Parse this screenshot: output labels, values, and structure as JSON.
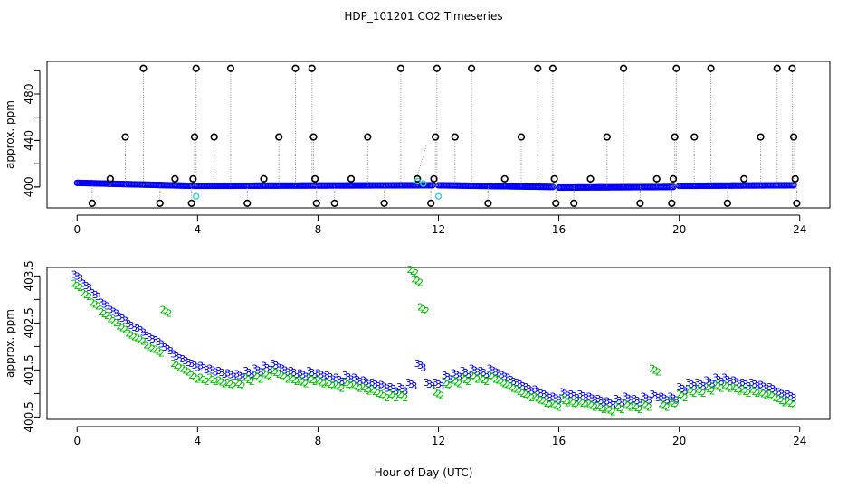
{
  "figure": {
    "title": "HDP_101201  CO2 Timeseries",
    "xlabel": "Hour of Day (UTC)"
  },
  "colors": {
    "black": "#000000",
    "blue": "#0000ff",
    "cyan": "#33cccc",
    "green": "#00bb00",
    "dotted_line": "#9a9a9a"
  },
  "chart_data": [
    {
      "type": "scatter",
      "panel": "top",
      "ylabel": "approx. ppm",
      "xlim": [
        -1,
        25
      ],
      "ylim": [
        382,
        508
      ],
      "xticks": [
        0,
        4,
        8,
        12,
        16,
        20,
        24
      ],
      "yticks": [
        400,
        440,
        480
      ],
      "grid": false,
      "baseline_segments": [
        {
          "x": [
            0.0,
            3.8
          ],
          "y": [
            403.5,
            401.0
          ]
        },
        {
          "x": [
            3.9,
            11.8
          ],
          "y": [
            401.0,
            401.5
          ]
        },
        {
          "x": [
            12.0,
            15.8
          ],
          "y": [
            401.5,
            400.0
          ]
        },
        {
          "x": [
            16.0,
            19.8
          ],
          "y": [
            399.5,
            400.0
          ]
        },
        {
          "x": [
            20.0,
            23.8
          ],
          "y": [
            401.0,
            401.5
          ]
        }
      ],
      "cyan_points": [
        {
          "x": 3.95,
          "y": 392
        },
        {
          "x": 12.0,
          "y": 392
        },
        {
          "x": 11.3,
          "y": 405
        },
        {
          "x": 11.5,
          "y": 403
        }
      ],
      "outlier_points": [
        {
          "x": 0.5,
          "y": 386
        },
        {
          "x": 1.1,
          "y": 407
        },
        {
          "x": 1.6,
          "y": 443
        },
        {
          "x": 2.2,
          "y": 502
        },
        {
          "x": 2.75,
          "y": 386
        },
        {
          "x": 3.25,
          "y": 407
        },
        {
          "x": 3.8,
          "y": 386
        },
        {
          "x": 3.85,
          "y": 407
        },
        {
          "x": 3.9,
          "y": 443
        },
        {
          "x": 3.95,
          "y": 502
        },
        {
          "x": 4.55,
          "y": 443
        },
        {
          "x": 5.1,
          "y": 502
        },
        {
          "x": 5.65,
          "y": 386
        },
        {
          "x": 6.2,
          "y": 407
        },
        {
          "x": 6.7,
          "y": 443
        },
        {
          "x": 7.25,
          "y": 502
        },
        {
          "x": 7.8,
          "y": 502
        },
        {
          "x": 7.85,
          "y": 443
        },
        {
          "x": 7.9,
          "y": 407
        },
        {
          "x": 7.95,
          "y": 386
        },
        {
          "x": 8.55,
          "y": 386
        },
        {
          "x": 9.1,
          "y": 407
        },
        {
          "x": 9.65,
          "y": 443
        },
        {
          "x": 10.2,
          "y": 386
        },
        {
          "x": 10.75,
          "y": 502
        },
        {
          "x": 11.3,
          "y": 407
        },
        {
          "x": 11.75,
          "y": 386
        },
        {
          "x": 11.85,
          "y": 407
        },
        {
          "x": 11.9,
          "y": 443
        },
        {
          "x": 11.95,
          "y": 502
        },
        {
          "x": 12.55,
          "y": 443
        },
        {
          "x": 13.1,
          "y": 502
        },
        {
          "x": 13.65,
          "y": 386
        },
        {
          "x": 14.2,
          "y": 407
        },
        {
          "x": 14.75,
          "y": 443
        },
        {
          "x": 15.3,
          "y": 502
        },
        {
          "x": 15.8,
          "y": 502
        },
        {
          "x": 15.85,
          "y": 407
        },
        {
          "x": 15.9,
          "y": 386
        },
        {
          "x": 16.5,
          "y": 386
        },
        {
          "x": 17.05,
          "y": 407
        },
        {
          "x": 17.6,
          "y": 443
        },
        {
          "x": 18.15,
          "y": 502
        },
        {
          "x": 18.7,
          "y": 386
        },
        {
          "x": 19.25,
          "y": 407
        },
        {
          "x": 19.75,
          "y": 386
        },
        {
          "x": 19.8,
          "y": 407
        },
        {
          "x": 19.85,
          "y": 443
        },
        {
          "x": 19.9,
          "y": 502
        },
        {
          "x": 20.5,
          "y": 443
        },
        {
          "x": 21.05,
          "y": 502
        },
        {
          "x": 21.6,
          "y": 386
        },
        {
          "x": 22.15,
          "y": 407
        },
        {
          "x": 22.7,
          "y": 443
        },
        {
          "x": 23.25,
          "y": 502
        },
        {
          "x": 23.75,
          "y": 502
        },
        {
          "x": 23.8,
          "y": 443
        },
        {
          "x": 23.85,
          "y": 407
        },
        {
          "x": 23.9,
          "y": 386
        }
      ],
      "gap_spike": {
        "x": [
          11.2,
          11.6
        ],
        "y": [
          401,
          436
        ]
      }
    },
    {
      "type": "scatter",
      "panel": "bottom",
      "ylabel": "approx. ppm",
      "xlim": [
        -1,
        25
      ],
      "ylim": [
        400.45,
        403.68
      ],
      "xticks": [
        0,
        4,
        8,
        12,
        16,
        20,
        24
      ],
      "yticks": [
        400.5,
        401.5,
        402.5,
        403.5
      ],
      "grid": false,
      "series": [
        {
          "marker": "3",
          "color": "blue",
          "x": [
            0.0,
            0.3,
            0.6,
            0.9,
            1.2,
            1.5,
            1.8,
            2.1,
            2.4,
            2.7,
            3.0,
            3.3,
            3.6,
            3.9,
            4.2,
            4.5,
            4.8,
            5.1,
            5.4,
            5.7,
            6.0,
            6.3,
            6.6,
            6.9,
            7.2,
            7.5,
            7.8,
            8.1,
            8.4,
            8.7,
            9.0,
            9.3,
            9.6,
            9.9,
            10.2,
            10.5,
            10.8,
            11.1,
            11.4,
            11.7,
            12.0,
            12.3,
            12.6,
            12.9,
            13.2,
            13.5,
            13.8,
            14.1,
            14.4,
            14.7,
            15.0,
            15.3,
            15.6,
            15.9,
            16.2,
            16.5,
            16.8,
            17.1,
            17.4,
            17.7,
            18.0,
            18.3,
            18.6,
            18.9,
            19.2,
            19.5,
            19.8,
            20.1,
            20.4,
            20.7,
            21.0,
            21.3,
            21.6,
            21.9,
            22.2,
            22.5,
            22.8,
            23.1,
            23.4,
            23.7
          ],
          "y": [
            403.5,
            403.3,
            403.1,
            402.9,
            402.75,
            402.6,
            402.45,
            402.35,
            402.2,
            402.1,
            401.95,
            401.8,
            401.7,
            401.6,
            401.55,
            401.5,
            401.45,
            401.4,
            401.38,
            401.45,
            401.5,
            401.55,
            401.6,
            401.5,
            401.45,
            401.4,
            401.45,
            401.4,
            401.35,
            401.3,
            401.35,
            401.3,
            401.25,
            401.2,
            401.15,
            401.1,
            401.1,
            401.2,
            401.6,
            401.2,
            401.2,
            401.35,
            401.4,
            401.45,
            401.5,
            401.45,
            401.5,
            401.4,
            401.3,
            401.2,
            401.1,
            401.05,
            400.95,
            400.9,
            401.0,
            400.95,
            400.95,
            400.9,
            400.85,
            400.8,
            400.85,
            400.9,
            400.85,
            400.9,
            400.95,
            400.9,
            400.9,
            401.1,
            401.2,
            401.2,
            401.25,
            401.3,
            401.3,
            401.25,
            401.2,
            401.2,
            401.15,
            401.1,
            401.0,
            400.95
          ]
        },
        {
          "marker": "2",
          "color": "green",
          "x": [
            0.0,
            0.3,
            0.6,
            0.9,
            1.2,
            1.5,
            1.8,
            2.1,
            2.4,
            2.7,
            2.95,
            3.3,
            3.6,
            3.9,
            4.2,
            4.5,
            4.8,
            5.1,
            5.4,
            5.7,
            6.0,
            6.3,
            6.6,
            6.9,
            7.2,
            7.5,
            7.8,
            8.1,
            8.4,
            8.7,
            9.0,
            9.3,
            9.6,
            9.9,
            10.2,
            10.5,
            10.8,
            11.15,
            11.3,
            11.5,
            12.0,
            12.3,
            12.6,
            12.9,
            13.2,
            13.5,
            13.8,
            14.1,
            14.4,
            14.7,
            15.0,
            15.3,
            15.6,
            15.9,
            16.2,
            16.5,
            16.8,
            17.1,
            17.4,
            17.7,
            18.0,
            18.3,
            18.6,
            18.9,
            19.2,
            19.5,
            19.8,
            20.1,
            20.4,
            20.7,
            21.0,
            21.3,
            21.6,
            21.9,
            22.2,
            22.5,
            22.8,
            23.1,
            23.4,
            23.7
          ],
          "y": [
            403.3,
            403.1,
            402.9,
            402.7,
            402.55,
            402.4,
            402.25,
            402.15,
            402.0,
            401.9,
            402.75,
            401.6,
            401.5,
            401.35,
            401.3,
            401.3,
            401.25,
            401.2,
            401.2,
            401.3,
            401.35,
            401.4,
            401.45,
            401.35,
            401.3,
            401.25,
            401.3,
            401.25,
            401.2,
            401.15,
            401.2,
            401.15,
            401.1,
            401.05,
            400.95,
            400.95,
            400.95,
            403.6,
            403.4,
            402.8,
            401.0,
            401.2,
            401.25,
            401.3,
            401.35,
            401.3,
            401.35,
            401.25,
            401.15,
            401.05,
            400.95,
            400.9,
            400.8,
            400.75,
            400.85,
            400.8,
            400.8,
            400.75,
            400.7,
            400.65,
            400.7,
            400.75,
            400.7,
            400.75,
            401.5,
            400.75,
            400.8,
            400.95,
            401.05,
            401.05,
            401.1,
            401.15,
            401.15,
            401.1,
            401.05,
            401.05,
            401.0,
            400.95,
            400.85,
            400.8
          ]
        }
      ]
    }
  ]
}
